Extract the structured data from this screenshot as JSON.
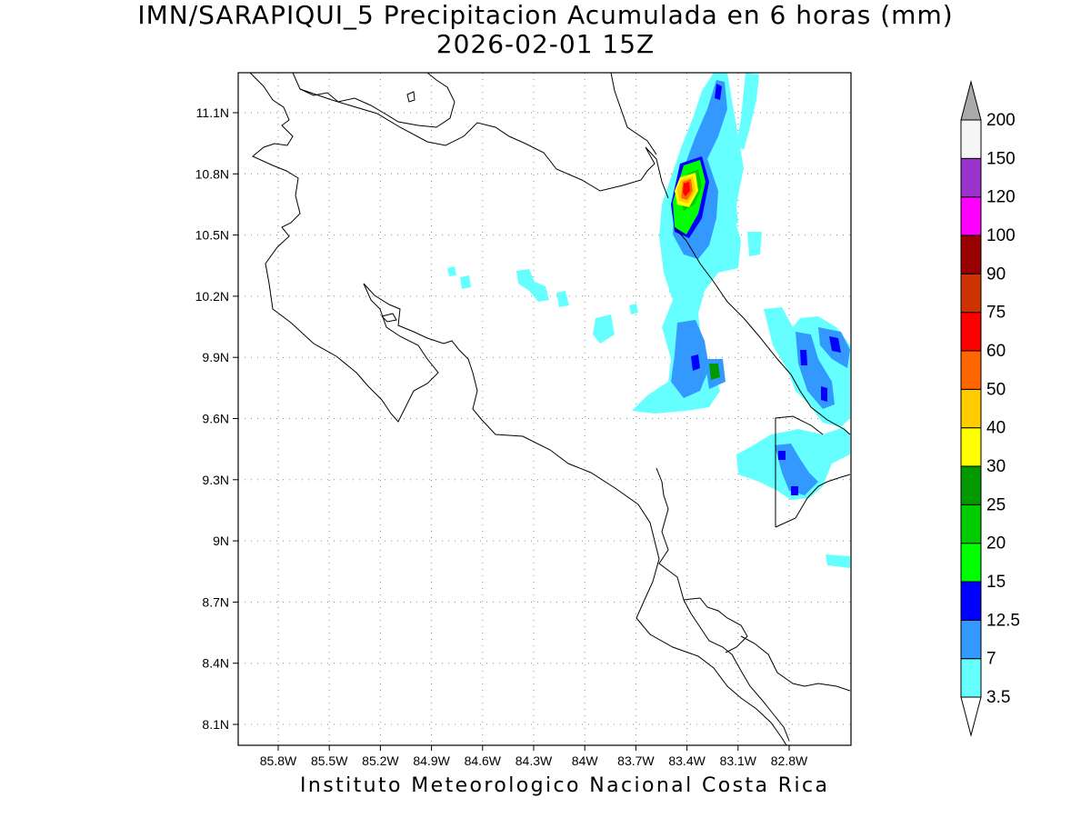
{
  "title_line1": "IMN/SARAPIQUI_5 Precipitacion Acumulada en 6 horas (mm)",
  "title_line2": "2026-02-01 15Z",
  "footer": "Instituto Meteorologico Nacional Costa Rica",
  "lat_ticks": [
    "11.1N",
    "10.8N",
    "10.5N",
    "10.2N",
    "9.9N",
    "9.6N",
    "9.3N",
    "9N",
    "8.7N",
    "8.4N",
    "8.1N"
  ],
  "lon_ticks": [
    "85.8W",
    "85.5W",
    "85.2W",
    "84.9W",
    "84.6W",
    "84.3W",
    "84W",
    "83.7W",
    "83.4W",
    "83.1W",
    "82.8W"
  ],
  "colorbar": {
    "levels": [
      "3.5",
      "7",
      "12.5",
      "15",
      "20",
      "25",
      "30",
      "40",
      "50",
      "60",
      "75",
      "90",
      "100",
      "120",
      "150",
      "200"
    ],
    "colors": [
      "#66ffff",
      "#3399ff",
      "#0000ff",
      "#00ff00",
      "#00cc00",
      "#009900",
      "#ffff00",
      "#ffcc00",
      "#ff6600",
      "#ff0000",
      "#cc3300",
      "#990000",
      "#ff00ff",
      "#9933cc",
      "#f5f5f5",
      "#aaaaaa"
    ]
  }
}
